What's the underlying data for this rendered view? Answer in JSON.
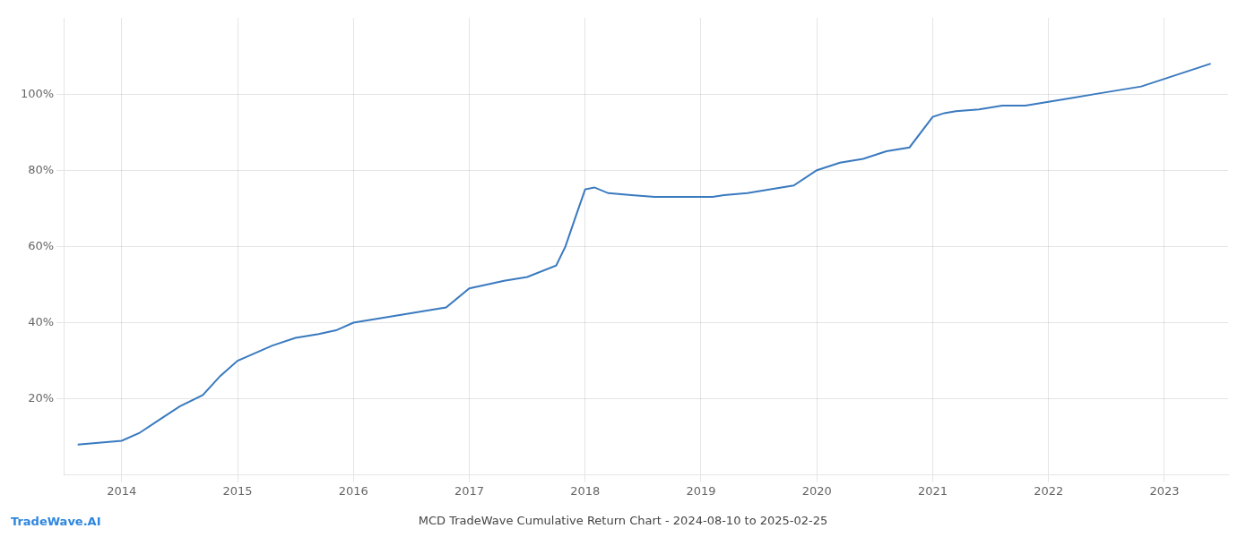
{
  "chart_data": {
    "type": "line",
    "title": "MCD TradeWave Cumulative Return Chart - 2024-08-10 to 2025-02-25",
    "annotations": [
      "TradeWave.AI"
    ],
    "color": "#3a7abf",
    "grid": true,
    "x": [
      2013.62,
      2014.0,
      2014.15,
      2014.3,
      2014.5,
      2014.7,
      2014.85,
      2015.0,
      2015.15,
      2015.3,
      2015.5,
      2015.7,
      2015.85,
      2016.0,
      2016.2,
      2016.4,
      2016.6,
      2016.8,
      2017.0,
      2017.15,
      2017.3,
      2017.5,
      2017.75,
      2017.83,
      2017.92,
      2018.0,
      2018.08,
      2018.2,
      2018.4,
      2018.6,
      2018.8,
      2019.0,
      2019.1,
      2019.2,
      2019.4,
      2019.6,
      2019.8,
      2020.0,
      2020.2,
      2020.4,
      2020.6,
      2020.8,
      2021.0,
      2021.1,
      2021.2,
      2021.4,
      2021.6,
      2021.8,
      2022.0,
      2022.2,
      2022.4,
      2022.6,
      2022.8,
      2023.0,
      2023.2,
      2023.4
    ],
    "values": [
      8,
      9,
      11,
      14,
      18,
      21,
      26,
      30,
      32,
      34,
      36,
      37,
      38,
      40,
      41,
      42,
      43,
      44,
      49,
      50,
      51,
      52,
      55,
      60,
      68,
      75,
      75.5,
      74,
      73.5,
      73,
      73,
      73,
      73,
      73.5,
      74,
      75,
      76,
      80,
      82,
      83,
      85,
      86,
      94,
      95,
      95.5,
      96,
      97,
      97,
      98,
      99,
      100,
      101,
      102,
      104,
      106,
      108
    ],
    "xlim": [
      2013.5,
      2023.55
    ],
    "xticks": [
      2014,
      2015,
      2016,
      2017,
      2018,
      2019,
      2020,
      2021,
      2022,
      2023
    ],
    "ylim": [
      0,
      120
    ],
    "yticks": [
      {
        "value": 20,
        "label": "20%"
      },
      {
        "value": 40,
        "label": "40%"
      },
      {
        "value": 60,
        "label": "60%"
      },
      {
        "value": 80,
        "label": "80%"
      },
      {
        "value": 100,
        "label": "100%"
      }
    ]
  }
}
